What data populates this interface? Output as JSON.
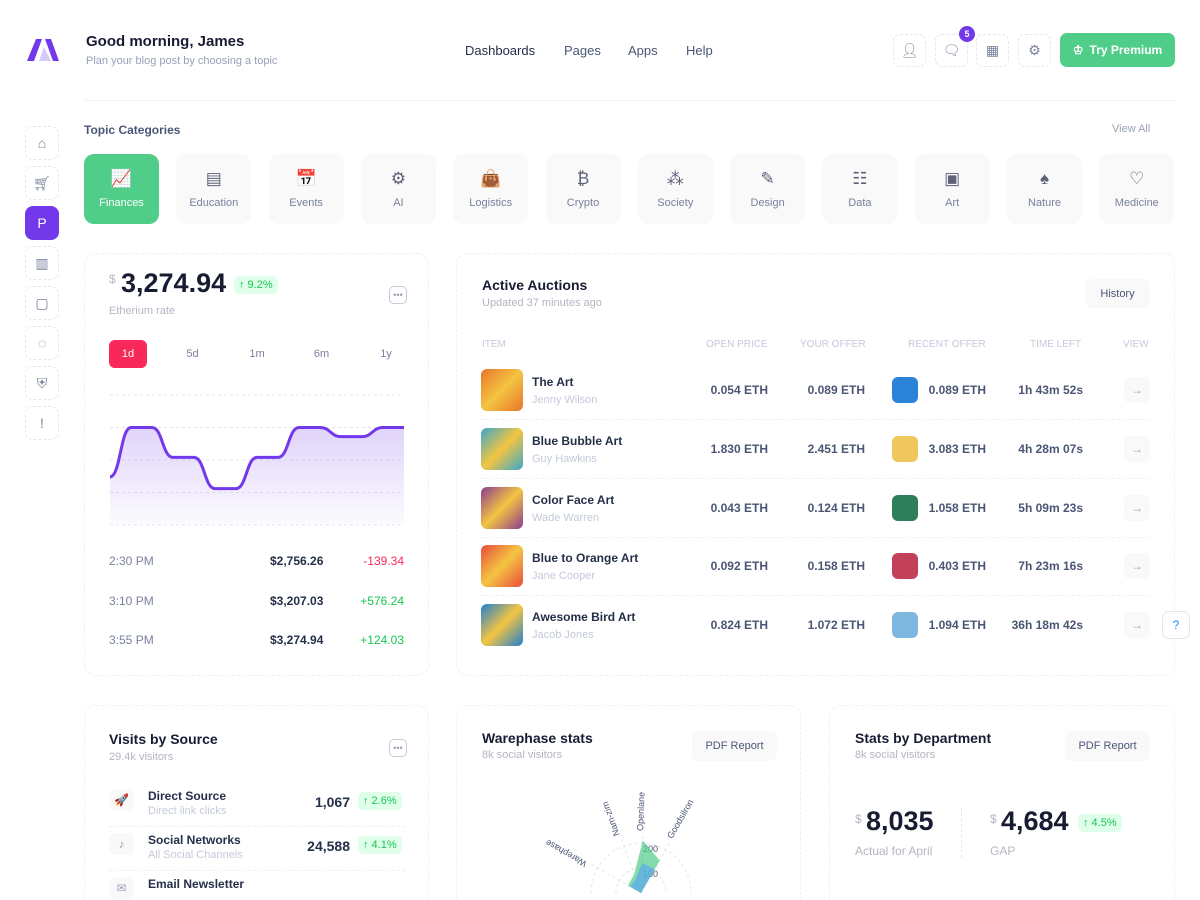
{
  "header": {
    "greeting": "Good morning, James",
    "subtitle": "Plan your blog post by choosing a topic",
    "nav": [
      "Dashboards",
      "Pages",
      "Apps",
      "Help"
    ],
    "icons": [
      "user-icon",
      "chat-icon",
      "apps-grid-icon",
      "settings-icon"
    ],
    "notification_count": "5",
    "premium_label": "Try Premium"
  },
  "sidebar": {
    "items": [
      "home-icon",
      "cart-icon",
      "paypal-icon",
      "building-icon",
      "contact-card-icon",
      "message-icon",
      "shield-icon",
      "alert-icon"
    ],
    "active": 2
  },
  "topics": {
    "title": "Topic Categories",
    "view_all": "View All",
    "items": [
      {
        "label": "Finances",
        "icon": "finance-chart-icon",
        "glyph": "📈"
      },
      {
        "label": "Education",
        "icon": "education-icon",
        "glyph": "▤"
      },
      {
        "label": "Events",
        "icon": "calendar-icon",
        "glyph": "📅"
      },
      {
        "label": "AI",
        "icon": "ai-icon",
        "glyph": "⚙"
      },
      {
        "label": "Logistics",
        "icon": "bag-icon",
        "glyph": "👜"
      },
      {
        "label": "Crypto",
        "icon": "bitcoin-icon",
        "glyph": "₿"
      },
      {
        "label": "Society",
        "icon": "people-icon",
        "glyph": "⁂"
      },
      {
        "label": "Design",
        "icon": "pen-icon",
        "glyph": "✎"
      },
      {
        "label": "Data",
        "icon": "data-tree-icon",
        "glyph": "☷"
      },
      {
        "label": "Art",
        "icon": "image-icon",
        "glyph": "▣"
      },
      {
        "label": "Nature",
        "icon": "tree-icon",
        "glyph": "♠"
      },
      {
        "label": "Medicine",
        "icon": "heart-pulse-icon",
        "glyph": "♡"
      }
    ],
    "active": 0
  },
  "eth": {
    "currency": "$",
    "value": "3,274.94",
    "change": "↑ 9.2%",
    "label": "Etherium rate",
    "periods": [
      "1d",
      "5d",
      "1m",
      "6m",
      "1y"
    ],
    "active_period": 0,
    "rows": [
      {
        "time": "2:30 PM",
        "price": "$2,756.26",
        "delta": "-139.34",
        "dir": "down"
      },
      {
        "time": "3:10 PM",
        "price": "$3,207.03",
        "delta": "+576.24",
        "dir": "up"
      },
      {
        "time": "3:55 PM",
        "price": "$3,274.94",
        "delta": "+124.03",
        "dir": "up"
      }
    ]
  },
  "chart_data": [
    {
      "type": "area",
      "series": [
        {
          "values": [
            37,
            75,
            75,
            52,
            52,
            28,
            28,
            52,
            52,
            75,
            75,
            68,
            68,
            75,
            75
          ]
        }
      ],
      "ylim": [
        0,
        100
      ],
      "grid": true,
      "color": "#7239ea"
    },
    {
      "type": "radar",
      "title": "Warephase stats",
      "categories": [
        "Warephase",
        "Nam-zim",
        "Openlane",
        "Goodsilron"
      ],
      "tick_labels": [
        "100",
        "200"
      ],
      "series": [
        {
          "color": "#50cd89",
          "values": [
            60,
            80,
            210,
            150
          ]
        },
        {
          "color": "#5aa7ef",
          "values": [
            50,
            60,
            120,
            110
          ]
        }
      ]
    }
  ],
  "auctions": {
    "title": "Active Auctions",
    "updated": "Updated 37 minutes ago",
    "history": "History",
    "columns": [
      "Item",
      "Open Price",
      "Your Offer",
      "Recent Offer",
      "Time Left",
      "View"
    ],
    "rows": [
      {
        "name": "The Art",
        "author": "Jenny Wilson",
        "open": "0.054 ETH",
        "offer": "0.089 ETH",
        "recent": "0.089 ETH",
        "time": "1h 43m 52s",
        "art": "#e8742a",
        "avatar": "#2b82d9"
      },
      {
        "name": "Blue Bubble Art",
        "author": "Guy Hawkins",
        "open": "1.830 ETH",
        "offer": "2.451 ETH",
        "recent": "3.083 ETH",
        "time": "4h 28m 07s",
        "art": "#3aa7c9",
        "avatar": "#f0c75e"
      },
      {
        "name": "Color Face Art",
        "author": "Wade Warren",
        "open": "0.043 ETH",
        "offer": "0.124 ETH",
        "recent": "1.058 ETH",
        "time": "5h 09m 23s",
        "art": "#8b3a8f",
        "avatar": "#2e7d5b"
      },
      {
        "name": "Blue to Orange Art",
        "author": "Jane Cooper",
        "open": "0.092 ETH",
        "offer": "0.158 ETH",
        "recent": "0.403 ETH",
        "time": "7h 23m 16s",
        "art": "#e94a3a",
        "avatar": "#c2405a"
      },
      {
        "name": "Awesome Bird Art",
        "author": "Jacob Jones",
        "open": "0.824 ETH",
        "offer": "1.072 ETH",
        "recent": "1.094 ETH",
        "time": "36h 18m 42s",
        "art": "#1f7fd1",
        "avatar": "#7fb7e0"
      }
    ]
  },
  "visits": {
    "title": "Visits by Source",
    "subtitle": "29.4k visitors",
    "rows": [
      {
        "name": "Direct Source",
        "sub": "Direct link clicks",
        "value": "1,067",
        "change": "↑ 2.6%",
        "icon": "rocket-icon",
        "glyph": "🚀"
      },
      {
        "name": "Social Networks",
        "sub": "All Social Channels",
        "value": "24,588",
        "change": "↑ 4.1%",
        "icon": "tiktok-icon",
        "glyph": "♪"
      },
      {
        "name": "Email Newsletter",
        "sub": "",
        "value": "",
        "change": "",
        "icon": "mail-icon",
        "glyph": "✉"
      }
    ]
  },
  "warephase": {
    "title": "Warephase stats",
    "subtitle": "8k social visitors",
    "report": "PDF Report"
  },
  "dept": {
    "title": "Stats by Department",
    "subtitle": "8k social visitors",
    "report": "PDF Report",
    "currency": "$",
    "actual": "8,035",
    "actual_label": "Actual for April",
    "gap": "4,684",
    "gap_label": "GAP",
    "gap_change": "↑ 4.5%"
  }
}
